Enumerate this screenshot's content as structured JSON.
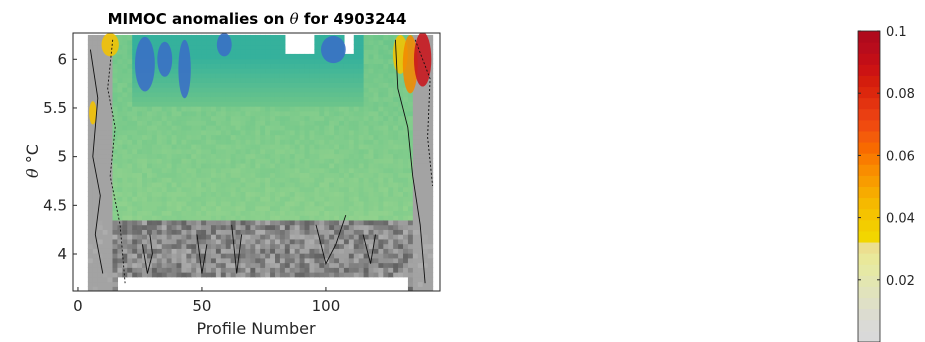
{
  "chart_data": {
    "type": "heatmap",
    "title_main": "MIMOC anomalies on ",
    "title_symbol": "θ",
    "title_tail": "  for 4903244",
    "xlabel": "Profile Number",
    "ylabel_symbol": "θ",
    "ylabel_unit": " °C",
    "xlim": [
      -2,
      146
    ],
    "ylim": [
      3.62,
      6.27
    ],
    "x_ticks": [
      0,
      50,
      100
    ],
    "x_tick_labels": [
      "0",
      "50",
      "100"
    ],
    "y_ticks": [
      4,
      4.5,
      5,
      5.5,
      6
    ],
    "y_tick_labels": [
      "4",
      "4.5",
      "5",
      "5.5",
      "6"
    ],
    "profiles": [
      4,
      143
    ],
    "theta_range": [
      3.62,
      6.25
    ],
    "grid": false,
    "colorbar": {
      "position": "right",
      "range": [
        0,
        0.1
      ],
      "ticks": [
        0.02,
        0.04,
        0.06,
        0.08,
        0.1
      ],
      "tick_labels": [
        "0.02",
        "0.04",
        "0.06",
        "0.08",
        "0.1"
      ],
      "colors": [
        "#d9d9d9",
        "#dadad6",
        "#dcdcd0",
        "#dfe0c6",
        "#e1e3bc",
        "#e3e6b1",
        "#e6e9a5",
        "#e9e89a",
        "#ecdf90",
        "#f2d600",
        "#f3cd00",
        "#f5c300",
        "#f6b900",
        "#f7ab00",
        "#f89c00",
        "#f98d00",
        "#f97c00",
        "#f86a00",
        "#f45c0a",
        "#f04b0f",
        "#ea3f12",
        "#e33310",
        "#dc270d",
        "#d41d0d",
        "#cc1313",
        "#c20e17",
        "#b80c1c",
        "#b00a1c"
      ]
    },
    "field_colors": {
      "low_anomaly": "#d9d9d9",
      "mid_anomaly": "#a9da8f",
      "green": "#6cc58a",
      "teal": "#35b19c",
      "blue": "#3a6ec6",
      "yellow": "#f4c300",
      "orange": "#f38a00",
      "red": "#c8161d"
    }
  }
}
